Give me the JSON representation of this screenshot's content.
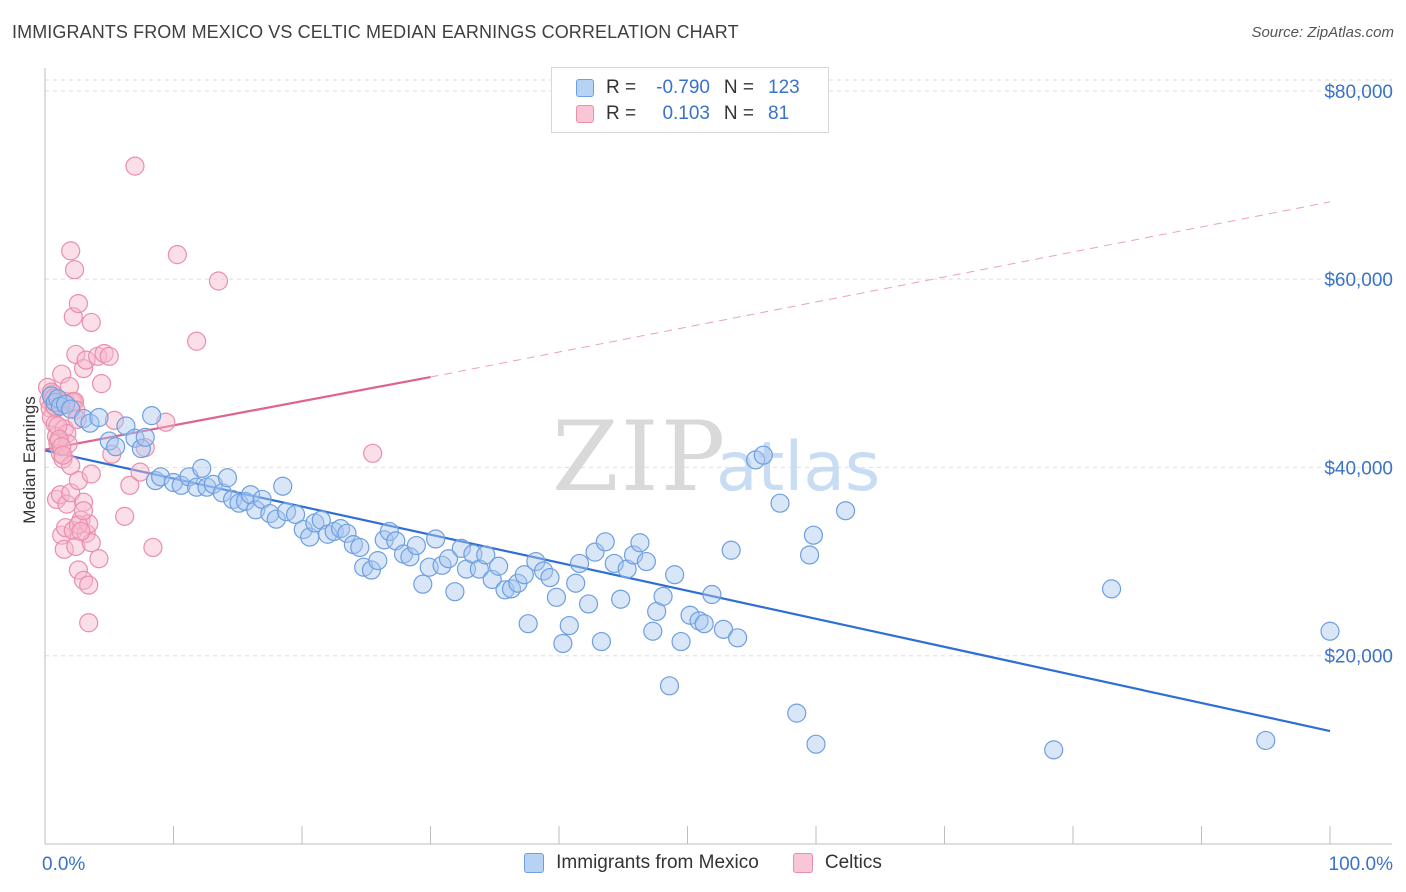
{
  "header": {
    "title": "IMMIGRANTS FROM MEXICO VS CELTIC MEDIAN EARNINGS CORRELATION CHART",
    "source": "Source: ZipAtlas.com"
  },
  "legend": {
    "rows": [
      {
        "r_label": "R =",
        "r_value": "-0.790",
        "n_label": "N =",
        "n_value": "123"
      },
      {
        "r_label": "R =",
        "r_value": "0.103",
        "n_label": "N =",
        "n_value": "81"
      }
    ]
  },
  "bottom_legend": {
    "items": [
      {
        "label": "Immigrants from Mexico"
      },
      {
        "label": "Celtics"
      }
    ]
  },
  "watermark": {
    "zip": "ZIP",
    "atlas": "atlas"
  },
  "colors": {
    "blue_fill": "#a9c8f0",
    "blue_stroke": "#6e9fe0",
    "blue_line": "#2f6fd4",
    "pink_fill": "#f7b8cc",
    "pink_stroke": "#ea8eab",
    "pink_line": "#e0628e",
    "tick_text": "#3a72c8",
    "grid": "#dedede"
  },
  "chart_data": {
    "type": "scatter",
    "title": "IMMIGRANTS FROM MEXICO VS CELTIC MEDIAN EARNINGS CORRELATION CHART",
    "xlabel": "",
    "ylabel": "Median Earnings",
    "xlim": [
      0,
      100
    ],
    "ylim": [
      0,
      82000
    ],
    "x_tick_labels": [
      "0.0%",
      "100.0%"
    ],
    "y_ticks": [
      20000,
      40000,
      60000,
      80000
    ],
    "y_tick_labels": [
      "$20,000",
      "$40,000",
      "$60,000",
      "$80,000"
    ],
    "grid": true,
    "series": [
      {
        "name": "Immigrants from Mexico",
        "color": "#a9c8f0",
        "r": -0.79,
        "n": 123,
        "trend": {
          "x": [
            0,
            100
          ],
          "y": [
            41800,
            12000
          ],
          "style": "solid"
        },
        "points": [
          [
            0.5,
            47600
          ],
          [
            0.8,
            46900
          ],
          [
            1.0,
            47300
          ],
          [
            1.2,
            46500
          ],
          [
            1.6,
            46700
          ],
          [
            2.0,
            46200
          ],
          [
            3.0,
            45200
          ],
          [
            3.5,
            44700
          ],
          [
            4.2,
            45300
          ],
          [
            5.0,
            42800
          ],
          [
            5.5,
            42200
          ],
          [
            6.3,
            44400
          ],
          [
            7.0,
            43100
          ],
          [
            7.5,
            42000
          ],
          [
            7.8,
            43200
          ],
          [
            8.3,
            45500
          ],
          [
            8.6,
            38600
          ],
          [
            9.0,
            39000
          ],
          [
            10.0,
            38400
          ],
          [
            10.6,
            38100
          ],
          [
            11.2,
            39000
          ],
          [
            11.8,
            37900
          ],
          [
            12.2,
            39900
          ],
          [
            12.6,
            37900
          ],
          [
            13.1,
            38200
          ],
          [
            13.8,
            37300
          ],
          [
            14.2,
            38900
          ],
          [
            14.6,
            36600
          ],
          [
            15.1,
            36200
          ],
          [
            15.6,
            36400
          ],
          [
            16.0,
            37100
          ],
          [
            16.4,
            35500
          ],
          [
            16.9,
            36600
          ],
          [
            17.5,
            35100
          ],
          [
            18.0,
            34500
          ],
          [
            18.5,
            38000
          ],
          [
            18.8,
            35300
          ],
          [
            19.5,
            35000
          ],
          [
            20.1,
            33400
          ],
          [
            20.6,
            32600
          ],
          [
            21.0,
            34100
          ],
          [
            21.5,
            34400
          ],
          [
            22.0,
            32900
          ],
          [
            22.5,
            33200
          ],
          [
            23.0,
            33500
          ],
          [
            23.5,
            33000
          ],
          [
            24.0,
            31800
          ],
          [
            24.5,
            31500
          ],
          [
            24.8,
            29400
          ],
          [
            25.4,
            29100
          ],
          [
            25.9,
            30100
          ],
          [
            26.4,
            32300
          ],
          [
            26.8,
            33200
          ],
          [
            27.3,
            32200
          ],
          [
            27.9,
            30800
          ],
          [
            28.4,
            30500
          ],
          [
            28.9,
            31700
          ],
          [
            29.4,
            27600
          ],
          [
            29.9,
            29400
          ],
          [
            30.4,
            32400
          ],
          [
            30.9,
            29600
          ],
          [
            31.4,
            30300
          ],
          [
            31.9,
            26800
          ],
          [
            32.4,
            31400
          ],
          [
            32.8,
            29200
          ],
          [
            33.3,
            30800
          ],
          [
            33.8,
            29200
          ],
          [
            34.3,
            30700
          ],
          [
            34.8,
            28100
          ],
          [
            35.3,
            29500
          ],
          [
            35.8,
            27000
          ],
          [
            36.3,
            27100
          ],
          [
            36.8,
            27700
          ],
          [
            37.3,
            28600
          ],
          [
            37.6,
            23400
          ],
          [
            38.2,
            30000
          ],
          [
            38.8,
            29000
          ],
          [
            39.3,
            28300
          ],
          [
            39.8,
            26200
          ],
          [
            40.3,
            21300
          ],
          [
            40.8,
            23200
          ],
          [
            41.3,
            27700
          ],
          [
            41.6,
            29800
          ],
          [
            42.3,
            25500
          ],
          [
            42.8,
            31000
          ],
          [
            43.3,
            21500
          ],
          [
            43.6,
            32100
          ],
          [
            44.3,
            29800
          ],
          [
            44.8,
            26000
          ],
          [
            45.3,
            29200
          ],
          [
            45.8,
            30700
          ],
          [
            46.3,
            32000
          ],
          [
            46.8,
            30000
          ],
          [
            47.3,
            22600
          ],
          [
            47.6,
            24700
          ],
          [
            48.1,
            26300
          ],
          [
            48.6,
            16800
          ],
          [
            49.0,
            28600
          ],
          [
            49.5,
            21500
          ],
          [
            50.2,
            24300
          ],
          [
            50.9,
            23700
          ],
          [
            51.3,
            23400
          ],
          [
            51.9,
            26500
          ],
          [
            52.8,
            22800
          ],
          [
            53.4,
            31200
          ],
          [
            53.9,
            21900
          ],
          [
            55.3,
            40800
          ],
          [
            55.9,
            41300
          ],
          [
            57.2,
            36200
          ],
          [
            58.5,
            13900
          ],
          [
            59.5,
            30700
          ],
          [
            59.8,
            32800
          ],
          [
            60.0,
            10600
          ],
          [
            62.3,
            35400
          ],
          [
            78.5,
            10000
          ],
          [
            83.0,
            27100
          ],
          [
            95.0,
            11000
          ],
          [
            100.0,
            22600
          ]
        ]
      },
      {
        "name": "Celtics",
        "color": "#f7b8cc",
        "r": 0.103,
        "n": 81,
        "trend": {
          "x": [
            0,
            30
          ],
          "y": [
            41900,
            49600
          ],
          "style": "solid",
          "extended": {
            "x": [
              30,
              100
            ],
            "y": [
              49600,
              68200
            ],
            "style": "dashed"
          }
        },
        "points": [
          [
            0.2,
            48500
          ],
          [
            0.3,
            47100
          ],
          [
            0.4,
            46300
          ],
          [
            0.5,
            45300
          ],
          [
            0.6,
            47800
          ],
          [
            0.7,
            46600
          ],
          [
            0.8,
            44600
          ],
          [
            0.9,
            43300
          ],
          [
            1.0,
            42600
          ],
          [
            1.1,
            42800
          ],
          [
            1.2,
            41500
          ],
          [
            1.3,
            49900
          ],
          [
            1.4,
            40900
          ],
          [
            1.5,
            44100
          ],
          [
            1.6,
            47000
          ],
          [
            1.7,
            43600
          ],
          [
            1.8,
            42500
          ],
          [
            1.9,
            48600
          ],
          [
            2.0,
            40200
          ],
          [
            2.1,
            46900
          ],
          [
            2.2,
            47000
          ],
          [
            2.3,
            47000
          ],
          [
            2.4,
            46100
          ],
          [
            2.5,
            45100
          ],
          [
            0.5,
            48000
          ],
          [
            0.6,
            47200
          ],
          [
            0.7,
            47400
          ],
          [
            0.8,
            46400
          ],
          [
            1.0,
            44400
          ],
          [
            1.1,
            43000
          ],
          [
            1.3,
            42200
          ],
          [
            1.4,
            41300
          ],
          [
            0.9,
            36600
          ],
          [
            1.2,
            37100
          ],
          [
            1.3,
            32800
          ],
          [
            1.5,
            31300
          ],
          [
            1.6,
            33600
          ],
          [
            1.7,
            36100
          ],
          [
            2.0,
            37300
          ],
          [
            2.2,
            33300
          ],
          [
            2.4,
            31600
          ],
          [
            2.6,
            38600
          ],
          [
            2.8,
            34400
          ],
          [
            3.0,
            36300
          ],
          [
            3.2,
            33000
          ],
          [
            3.4,
            34000
          ],
          [
            3.6,
            32000
          ],
          [
            2.6,
            33900
          ],
          [
            2.8,
            33200
          ],
          [
            3.0,
            35400
          ],
          [
            2.6,
            29100
          ],
          [
            3.0,
            28000
          ],
          [
            3.4,
            27500
          ],
          [
            3.4,
            23500
          ],
          [
            2.2,
            56000
          ],
          [
            2.3,
            61000
          ],
          [
            2.0,
            63000
          ],
          [
            2.4,
            52000
          ],
          [
            2.6,
            57400
          ],
          [
            3.0,
            50500
          ],
          [
            3.2,
            51400
          ],
          [
            3.6,
            55400
          ],
          [
            4.1,
            51800
          ],
          [
            4.4,
            48900
          ],
          [
            4.6,
            52100
          ],
          [
            5.0,
            51800
          ],
          [
            5.2,
            41400
          ],
          [
            5.4,
            45000
          ],
          [
            6.2,
            34800
          ],
          [
            6.6,
            38100
          ],
          [
            7.0,
            72000
          ],
          [
            7.4,
            39500
          ],
          [
            7.8,
            42100
          ],
          [
            8.4,
            31500
          ],
          [
            9.4,
            44800
          ],
          [
            10.3,
            62600
          ],
          [
            11.8,
            53400
          ],
          [
            13.5,
            59800
          ],
          [
            25.5,
            41500
          ],
          [
            3.6,
            39300
          ],
          [
            4.2,
            30300
          ]
        ]
      }
    ]
  }
}
